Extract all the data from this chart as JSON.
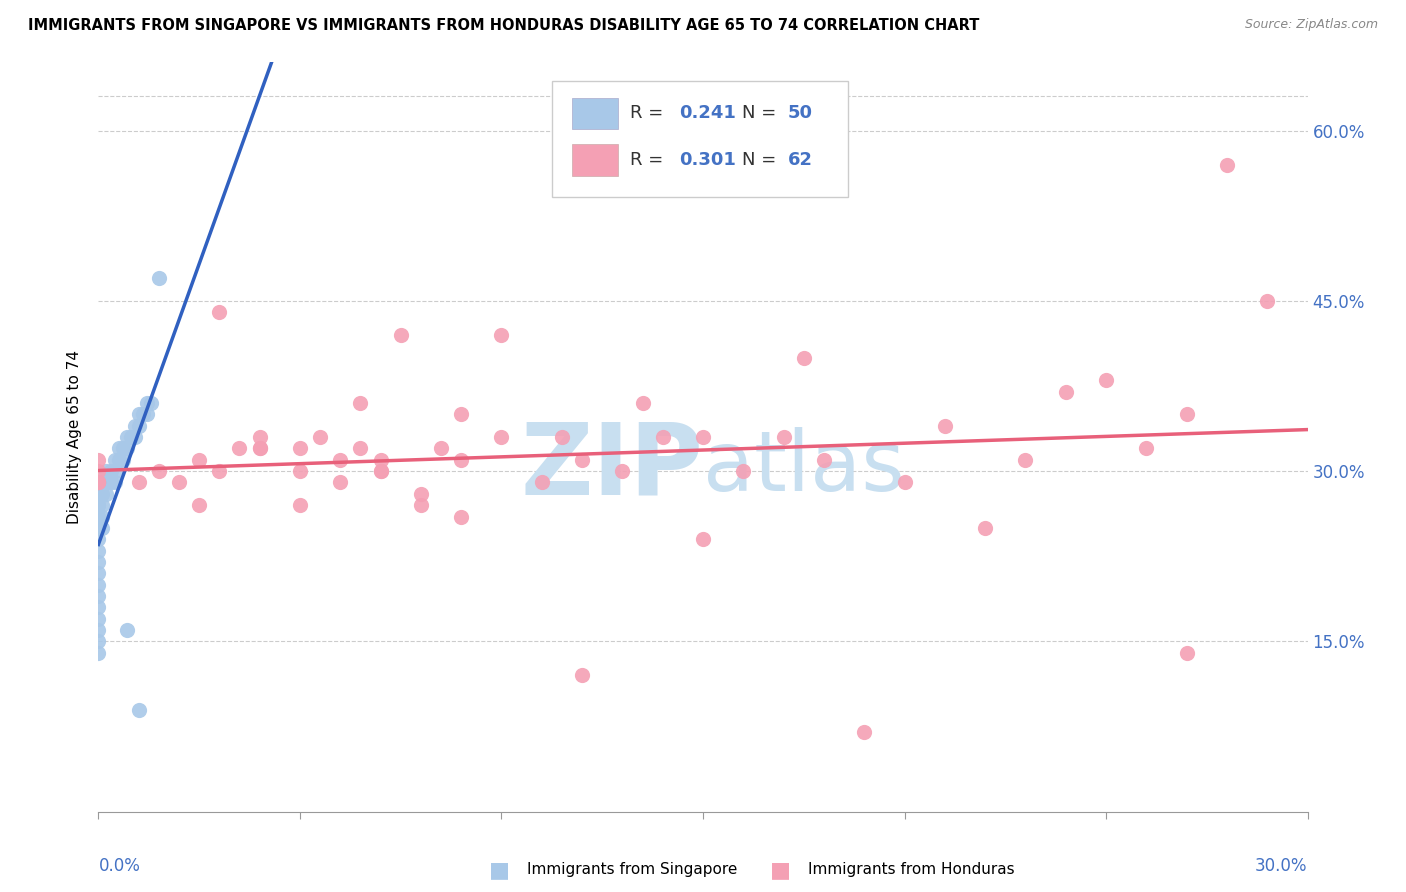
{
  "title": "IMMIGRANTS FROM SINGAPORE VS IMMIGRANTS FROM HONDURAS DISABILITY AGE 65 TO 74 CORRELATION CHART",
  "source": "Source: ZipAtlas.com",
  "ylabel": "Disability Age 65 to 74",
  "y_tick_labels": [
    "15.0%",
    "30.0%",
    "45.0%",
    "60.0%"
  ],
  "y_tick_values": [
    0.15,
    0.3,
    0.45,
    0.6
  ],
  "xmin": 0.0,
  "xmax": 0.3,
  "ymin": 0.0,
  "ymax": 0.66,
  "singapore_R": 0.241,
  "singapore_N": 50,
  "honduras_R": 0.301,
  "honduras_N": 62,
  "singapore_color": "#a8c8e8",
  "honduras_color": "#f4a0b4",
  "singapore_line_color": "#3060c0",
  "honduras_line_color": "#e8607a",
  "axis_color": "#4472c4",
  "watermark_zip_color": "#c8dff0",
  "watermark_atlas_color": "#c8dff0",
  "singapore_x": [
    0.0,
    0.0,
    0.0,
    0.0,
    0.0,
    0.0,
    0.0,
    0.0,
    0.0,
    0.0,
    0.0,
    0.0,
    0.0,
    0.0,
    0.0,
    0.0,
    0.0,
    0.0,
    0.0,
    0.0,
    0.001,
    0.001,
    0.001,
    0.001,
    0.002,
    0.002,
    0.002,
    0.003,
    0.003,
    0.004,
    0.004,
    0.004,
    0.005,
    0.005,
    0.006,
    0.006,
    0.007,
    0.007,
    0.008,
    0.009,
    0.009,
    0.01,
    0.01,
    0.011,
    0.012,
    0.012,
    0.013,
    0.015,
    0.007,
    0.01
  ],
  "singapore_y": [
    0.28,
    0.28,
    0.28,
    0.27,
    0.27,
    0.26,
    0.26,
    0.25,
    0.25,
    0.24,
    0.23,
    0.22,
    0.21,
    0.2,
    0.19,
    0.18,
    0.17,
    0.16,
    0.15,
    0.14,
    0.28,
    0.27,
    0.26,
    0.25,
    0.3,
    0.29,
    0.28,
    0.3,
    0.29,
    0.31,
    0.3,
    0.29,
    0.32,
    0.31,
    0.32,
    0.31,
    0.33,
    0.32,
    0.33,
    0.34,
    0.33,
    0.35,
    0.34,
    0.35,
    0.36,
    0.35,
    0.36,
    0.47,
    0.16,
    0.09
  ],
  "honduras_x": [
    0.0,
    0.0,
    0.0,
    0.0,
    0.0,
    0.0,
    0.01,
    0.015,
    0.02,
    0.025,
    0.025,
    0.03,
    0.03,
    0.035,
    0.04,
    0.04,
    0.04,
    0.05,
    0.05,
    0.05,
    0.055,
    0.06,
    0.06,
    0.065,
    0.065,
    0.07,
    0.07,
    0.07,
    0.075,
    0.08,
    0.08,
    0.085,
    0.09,
    0.09,
    0.09,
    0.1,
    0.1,
    0.11,
    0.115,
    0.12,
    0.12,
    0.13,
    0.135,
    0.14,
    0.15,
    0.15,
    0.16,
    0.17,
    0.175,
    0.18,
    0.19,
    0.2,
    0.21,
    0.22,
    0.23,
    0.24,
    0.25,
    0.26,
    0.27,
    0.27,
    0.28,
    0.29
  ],
  "honduras_y": [
    0.29,
    0.29,
    0.29,
    0.29,
    0.3,
    0.31,
    0.29,
    0.3,
    0.29,
    0.27,
    0.31,
    0.3,
    0.44,
    0.32,
    0.32,
    0.32,
    0.33,
    0.27,
    0.3,
    0.32,
    0.33,
    0.29,
    0.31,
    0.32,
    0.36,
    0.3,
    0.3,
    0.31,
    0.42,
    0.27,
    0.28,
    0.32,
    0.26,
    0.31,
    0.35,
    0.33,
    0.42,
    0.29,
    0.33,
    0.12,
    0.31,
    0.3,
    0.36,
    0.33,
    0.24,
    0.33,
    0.3,
    0.33,
    0.4,
    0.31,
    0.07,
    0.29,
    0.34,
    0.25,
    0.31,
    0.37,
    0.38,
    0.32,
    0.14,
    0.35,
    0.57,
    0.45
  ]
}
